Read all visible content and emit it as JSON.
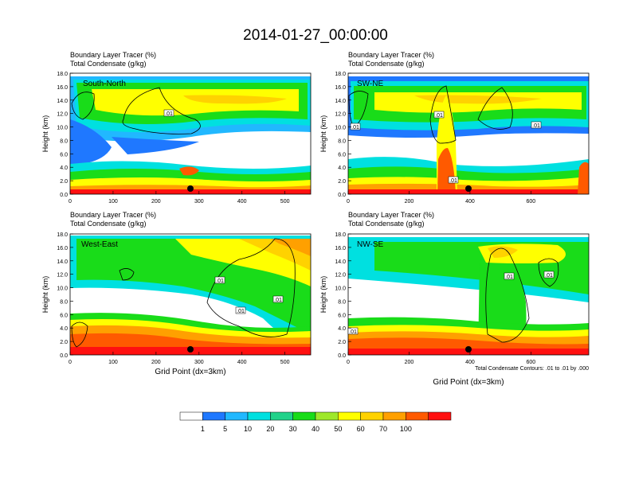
{
  "title": "2014-01-27_00:00:00",
  "panel_header": {
    "line1": "Boundary Layer Tracer    (%)",
    "line2": "Total Condensate    (g/kg)"
  },
  "axis_labels": {
    "ylabel": "Height (km)",
    "xlabel": "Grid Point (dx=3km)"
  },
  "contour_note": "Total Condensate Contours: .01 to .01 by .000",
  "contour_label": ".01",
  "colors": {
    "levels": [
      "#ffffff",
      "#1f78ff",
      "#21b8ff",
      "#00e0e0",
      "#21d28a",
      "#19dc19",
      "#9ee82a",
      "#ffff00",
      "#ffd200",
      "#ffa000",
      "#ff5a00",
      "#ff1010"
    ]
  },
  "colorbar": {
    "labels": [
      "1",
      "5",
      "10",
      "20",
      "30",
      "40",
      "50",
      "60",
      "70",
      "100"
    ]
  },
  "chart_data": [
    {
      "type": "heatmap",
      "name": "South-North",
      "ylim": [
        0,
        18
      ],
      "yticks": [
        "0.0",
        "2.0",
        "4.0",
        "6.0",
        "8.0",
        "10.0",
        "12.0",
        "14.0",
        "16.0",
        "18.0"
      ],
      "xlim": [
        0,
        560
      ],
      "xticks": [
        "0",
        "100",
        "200",
        "300",
        "400",
        "500"
      ],
      "xtick_values": [
        0,
        100,
        200,
        300,
        400,
        500
      ],
      "marker_x": 280,
      "contour_labels": [
        ".01"
      ]
    },
    {
      "type": "heatmap",
      "name": "SW-NE",
      "ylim": [
        0,
        18
      ],
      "yticks": [
        "0.0",
        "2.0",
        "4.0",
        "6.0",
        "8.0",
        "10.0",
        "12.0",
        "14.0",
        "16.0",
        "18.0"
      ],
      "xlim": [
        0,
        790
      ],
      "xticks": [
        "0",
        "200",
        "400",
        "600"
      ],
      "xtick_values": [
        0,
        200,
        400,
        600
      ],
      "marker_x": 395,
      "contour_labels": [
        ".01",
        ".01",
        ".01",
        ".01"
      ]
    },
    {
      "type": "heatmap",
      "name": "West-East",
      "ylim": [
        0,
        18
      ],
      "yticks": [
        "0.0",
        "2.0",
        "4.0",
        "6.0",
        "8.0",
        "10.0",
        "12.0",
        "14.0",
        "16.0",
        "18.0"
      ],
      "xlim": [
        0,
        560
      ],
      "xticks": [
        "0",
        "100",
        "200",
        "300",
        "400",
        "500"
      ],
      "xtick_values": [
        0,
        100,
        200,
        300,
        400,
        500
      ],
      "marker_x": 280,
      "contour_labels": [
        ".01",
        ".01",
        ".01"
      ]
    },
    {
      "type": "heatmap",
      "name": "NW-SE",
      "ylim": [
        0,
        18
      ],
      "yticks": [
        "0.0",
        "2.0",
        "4.0",
        "6.0",
        "8.0",
        "10.0",
        "12.0",
        "14.0",
        "16.0",
        "18.0"
      ],
      "xlim": [
        0,
        790
      ],
      "xticks": [
        "0",
        "200",
        "400",
        "600"
      ],
      "xtick_values": [
        0,
        200,
        400,
        600
      ],
      "marker_x": 395,
      "contour_labels": [
        ".01",
        ".01",
        ".01"
      ]
    }
  ]
}
